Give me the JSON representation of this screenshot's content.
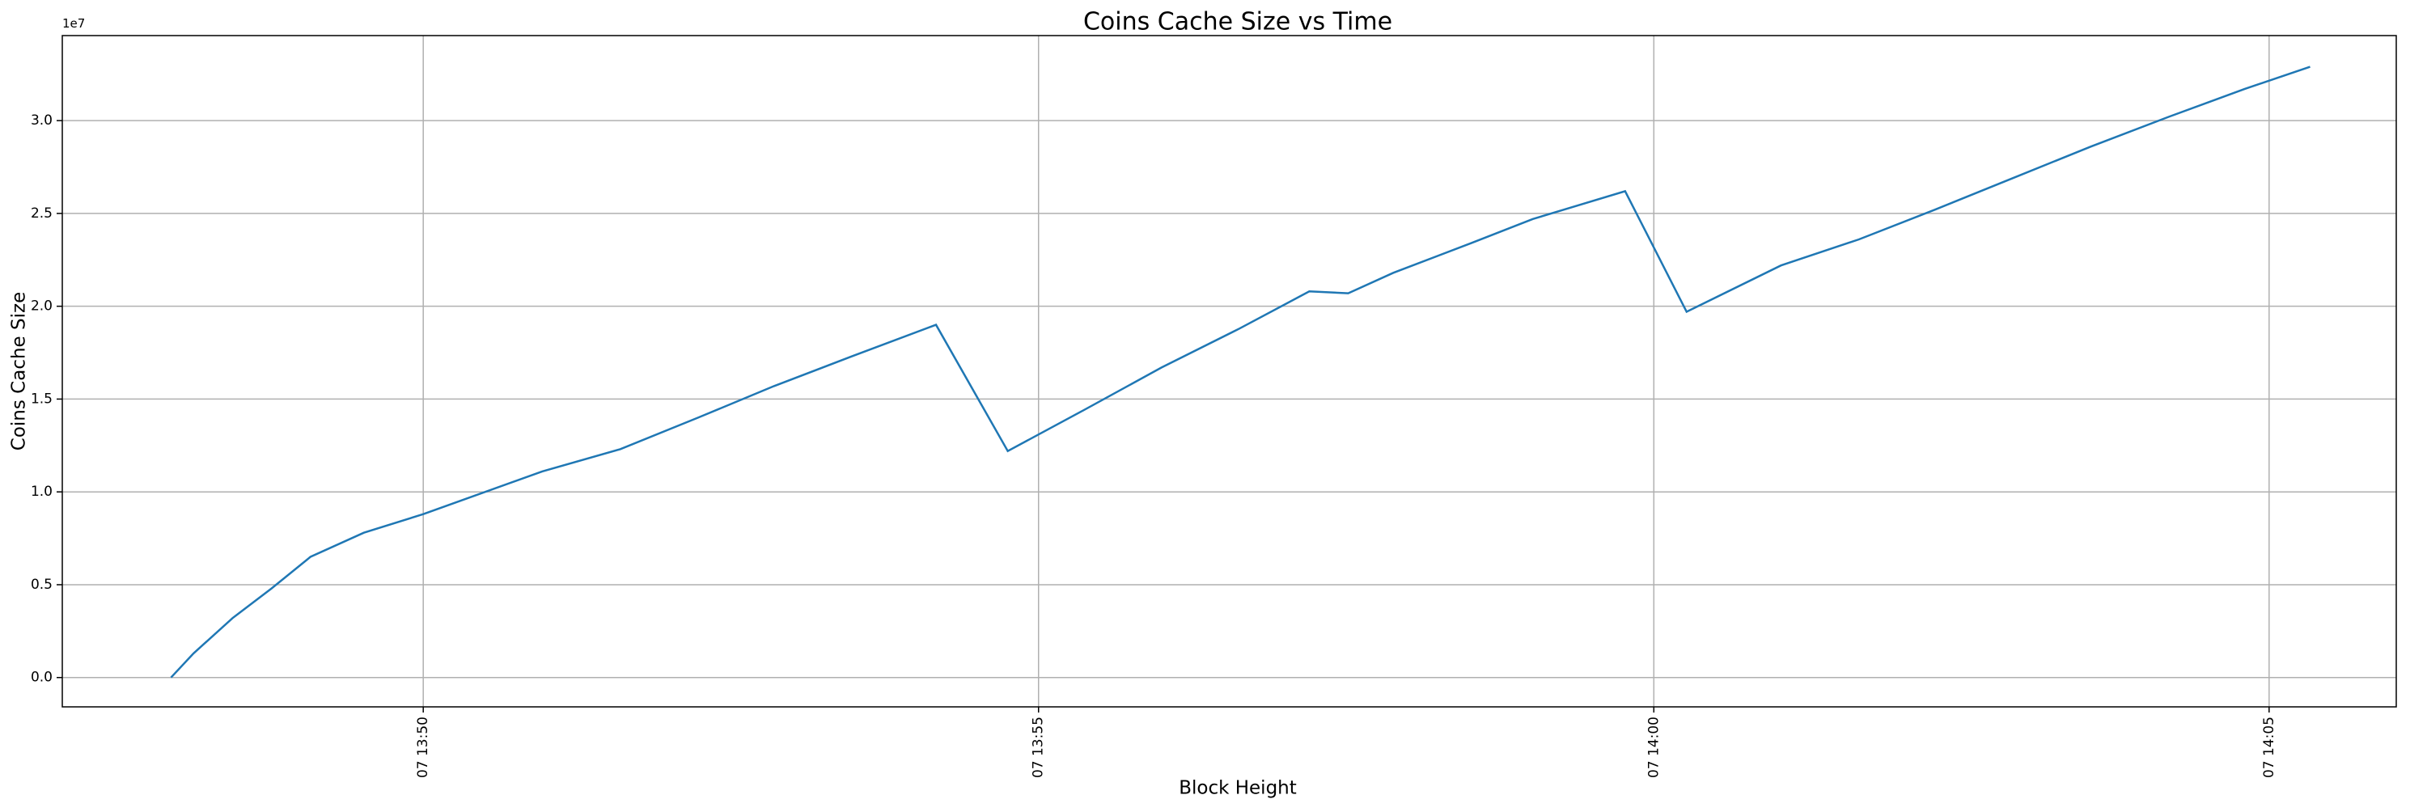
{
  "chart_data": {
    "type": "line",
    "title": "Coins Cache Size vs Time",
    "x_label": "Block Height",
    "y_label": "Coins Cache Size",
    "y_offset_label": "1e7",
    "grid": true,
    "x": [
      "07 13:47:57",
      "07 13:48:08",
      "07 13:48:27",
      "07 13:48:46",
      "07 13:49:05",
      "07 13:49:31",
      "07 13:50:00",
      "07 13:50:58",
      "07 13:51:36",
      "07 13:52:14",
      "07 13:52:51",
      "07 13:53:29",
      "07 13:54:10",
      "07 13:54:45",
      "07 13:55:22",
      "07 13:56:00",
      "07 13:56:38",
      "07 13:57:12",
      "07 13:57:31",
      "07 13:57:53",
      "07 13:58:31",
      "07 13:59:01",
      "07 13:59:46",
      "07 14:00:16",
      "07 14:01:02",
      "07 14:01:40",
      "07 14:02:17",
      "07 14:02:55",
      "07 14:03:33",
      "07 14:04:11",
      "07 14:04:48",
      "07 14:05:20"
    ],
    "series": [
      {
        "name": "Coins Cache Size",
        "color": "#1f77b4",
        "values": [
          0,
          1300000,
          3200000,
          4800000,
          6500000,
          7800000,
          8800000,
          11100000,
          12300000,
          14000000,
          15700000,
          17300000,
          19000000,
          12200000,
          14400000,
          16700000,
          18800000,
          20800000,
          20700000,
          21800000,
          23400000,
          24700000,
          26200000,
          19700000,
          22200000,
          23600000,
          25200000,
          26900000,
          28600000,
          30200000,
          31700000,
          32900000
        ]
      }
    ],
    "xlim": [
      "07 13:47:04",
      "07 14:06:02"
    ],
    "xticks": [
      "07 13:50",
      "07 13:55",
      "07 14:00",
      "07 14:05"
    ],
    "ylim": [
      -1580000,
      34580000
    ],
    "yticks": [
      {
        "value": 0,
        "label": "0.0"
      },
      {
        "value": 5000000,
        "label": "0.5"
      },
      {
        "value": 10000000,
        "label": "1.0"
      },
      {
        "value": 15000000,
        "label": "1.5"
      },
      {
        "value": 20000000,
        "label": "2.0"
      },
      {
        "value": 25000000,
        "label": "2.5"
      },
      {
        "value": 30000000,
        "label": "3.0"
      }
    ]
  }
}
